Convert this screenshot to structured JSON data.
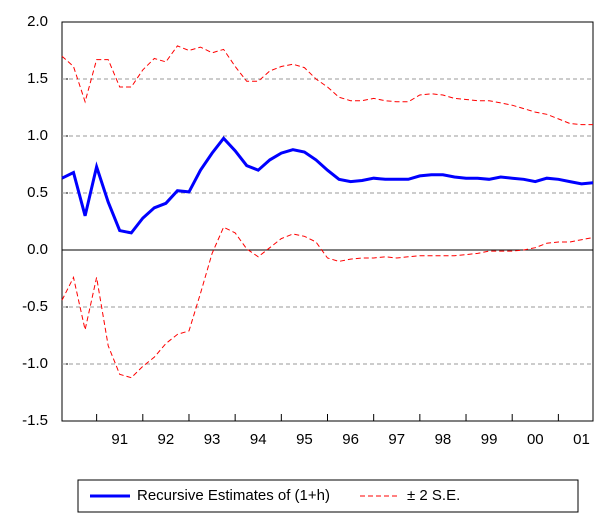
{
  "chart_data": {
    "type": "line",
    "x": [
      1990.25,
      1990.5,
      1990.75,
      1991,
      1991.25,
      1991.5,
      1991.75,
      1992,
      1992.25,
      1992.5,
      1992.75,
      1993,
      1993.25,
      1993.5,
      1993.75,
      1994,
      1994.25,
      1994.5,
      1994.75,
      1995,
      1995.25,
      1995.5,
      1995.75,
      1996,
      1996.25,
      1996.5,
      1996.75,
      1997,
      1997.25,
      1997.5,
      1997.75,
      1998,
      1998.25,
      1998.5,
      1998.75,
      1999,
      1999.25,
      1999.5,
      1999.75,
      2000,
      2000.25,
      2000.5,
      2000.75,
      2001,
      2001.25,
      2001.5,
      2001.75
    ],
    "series": [
      {
        "name": "Recursive Estimates of (1+h)",
        "color": "#0000ff",
        "values": [
          0.63,
          0.68,
          0.3,
          0.73,
          0.42,
          0.17,
          0.15,
          0.28,
          0.37,
          0.41,
          0.52,
          0.51,
          0.7,
          0.85,
          0.98,
          0.87,
          0.74,
          0.7,
          0.79,
          0.85,
          0.88,
          0.86,
          0.79,
          0.7,
          0.62,
          0.6,
          0.61,
          0.63,
          0.62,
          0.62,
          0.62,
          0.65,
          0.66,
          0.66,
          0.64,
          0.63,
          0.63,
          0.62,
          0.64,
          0.63,
          0.62,
          0.6,
          0.63,
          0.62,
          0.6,
          0.58,
          0.59
        ]
      },
      {
        "name": "± 2 S.E.",
        "color": "#ff0000",
        "upper": [
          1.7,
          1.61,
          1.3,
          1.67,
          1.67,
          1.43,
          1.43,
          1.58,
          1.68,
          1.65,
          1.79,
          1.75,
          1.78,
          1.73,
          1.76,
          1.61,
          1.48,
          1.48,
          1.57,
          1.61,
          1.63,
          1.6,
          1.5,
          1.43,
          1.34,
          1.31,
          1.31,
          1.33,
          1.31,
          1.3,
          1.3,
          1.36,
          1.37,
          1.36,
          1.33,
          1.32,
          1.31,
          1.31,
          1.29,
          1.27,
          1.24,
          1.21,
          1.19,
          1.15,
          1.11,
          1.1,
          1.1
        ],
        "lower": [
          -0.44,
          -0.24,
          -0.7,
          -0.24,
          -0.84,
          -1.09,
          -1.12,
          -1.02,
          -0.94,
          -0.82,
          -0.74,
          -0.71,
          -0.38,
          -0.03,
          0.2,
          0.15,
          0.01,
          -0.06,
          0.02,
          0.1,
          0.14,
          0.12,
          0.07,
          -0.07,
          -0.1,
          -0.08,
          -0.07,
          -0.07,
          -0.06,
          -0.07,
          -0.06,
          -0.05,
          -0.05,
          -0.05,
          -0.05,
          -0.04,
          -0.03,
          -0.01,
          -0.01,
          -0.01,
          0.0,
          0.02,
          0.06,
          0.07,
          0.07,
          0.09,
          0.11
        ]
      }
    ],
    "xlim": [
      1990.25,
      2001.75
    ],
    "xticks": [
      {
        "value": 1991.5,
        "label": "91"
      },
      {
        "value": 1992.5,
        "label": "92"
      },
      {
        "value": 1993.5,
        "label": "93"
      },
      {
        "value": 1994.5,
        "label": "94"
      },
      {
        "value": 1995.5,
        "label": "95"
      },
      {
        "value": 1996.5,
        "label": "96"
      },
      {
        "value": 1997.5,
        "label": "97"
      },
      {
        "value": 1998.5,
        "label": "98"
      },
      {
        "value": 1999.5,
        "label": "99"
      },
      {
        "value": 2000.5,
        "label": "00"
      },
      {
        "value": 2001.5,
        "label": "01"
      }
    ],
    "ylim": [
      -1.5,
      2.0
    ],
    "yticks": [
      {
        "value": -1.5,
        "label": "-1.5"
      },
      {
        "value": -1.0,
        "label": "-1.0"
      },
      {
        "value": -0.5,
        "label": "-0.5"
      },
      {
        "value": 0,
        "label": "0.0"
      },
      {
        "value": 0.5,
        "label": "0.5"
      },
      {
        "value": 1.0,
        "label": "1.0"
      },
      {
        "value": 1.5,
        "label": "1.5"
      },
      {
        "value": 2.0,
        "label": "2.0"
      }
    ],
    "grid": true,
    "legend": "bottom"
  }
}
